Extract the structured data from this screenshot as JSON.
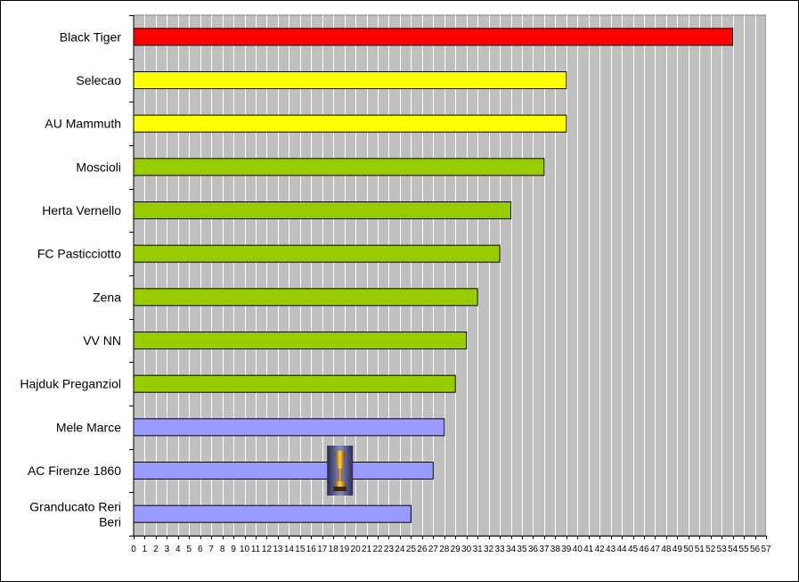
{
  "chart_data": {
    "type": "bar",
    "orientation": "horizontal",
    "categories": [
      "Black Tiger",
      "Selecao",
      "AU Mammuth",
      "Moscioli",
      "Herta Vernello",
      "FC Pasticciotto",
      "Zena",
      "VV NN",
      "Hajduk Preganziol",
      "Mele Marce",
      "AC Firenze 1860",
      "Granducato Reri Beri"
    ],
    "values": [
      54,
      39,
      39,
      37,
      34,
      33,
      31,
      30,
      29,
      28,
      27,
      25
    ],
    "bar_colors": [
      "#ff0000",
      "#ffff00",
      "#ffff00",
      "#99cc00",
      "#99cc00",
      "#99cc00",
      "#99cc00",
      "#99cc00",
      "#99cc00",
      "#9999ff",
      "#9999ff",
      "#9999ff"
    ],
    "xlim": [
      0,
      57
    ],
    "x_tick_step": 1,
    "grid": true,
    "plot_background": "#c0c0c0",
    "gridline_color": "#ffffff",
    "annotations": [
      {
        "type": "icon",
        "name": "trophy-icon",
        "category": "AC Firenze 1860",
        "x_value": 18.6
      }
    ],
    "title": "",
    "xlabel": "",
    "ylabel": ""
  }
}
